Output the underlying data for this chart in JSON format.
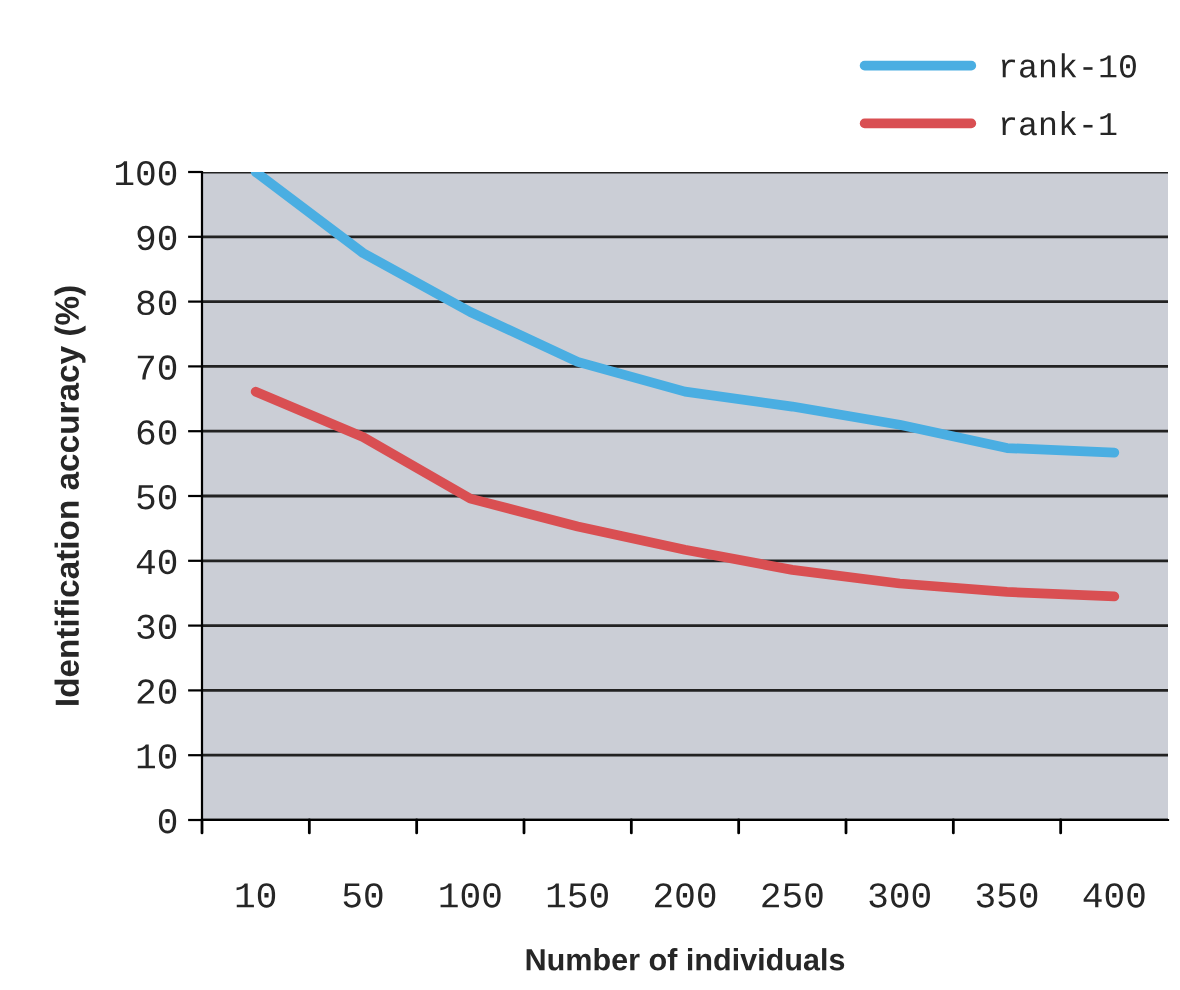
{
  "chart_data": {
    "type": "line",
    "xlabel": "Number of individuals",
    "ylabel": "Identification accuracy (%)",
    "categories": [
      "10",
      "50",
      "100",
      "150",
      "200",
      "250",
      "300",
      "350",
      "400"
    ],
    "series": [
      {
        "name": "rank-10",
        "color": "#4aaee2",
        "values": [
          100,
          87.5,
          78.4,
          70.7,
          66.1,
          63.8,
          61.0,
          57.4,
          56.7
        ]
      },
      {
        "name": "rank-1",
        "color": "#d94f52",
        "values": [
          66.1,
          59.1,
          49.6,
          45.3,
          41.7,
          38.6,
          36.5,
          35.2,
          34.5
        ]
      }
    ],
    "ylim": [
      0,
      100
    ],
    "yticks": [
      0,
      10,
      20,
      30,
      40,
      50,
      60,
      70,
      80,
      90,
      100
    ],
    "grid": "y",
    "legend": "top right",
    "marker": "none",
    "line_style": "solid"
  }
}
